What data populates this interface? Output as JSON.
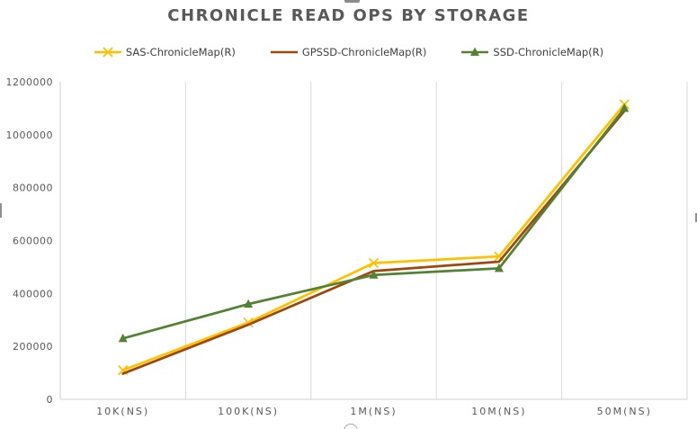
{
  "chart_data": {
    "type": "line",
    "title": "CHRONICLE READ OPS BY STORAGE",
    "categories": [
      "10K(NS)",
      "100K(NS)",
      "1M(NS)",
      "10M(NS)",
      "50M(NS)"
    ],
    "series": [
      {
        "name": "SAS-ChronicleMap(R)",
        "color": "#FFC000",
        "marker": "x",
        "values": [
          110000,
          290000,
          515000,
          540000,
          1115000
        ]
      },
      {
        "name": "GPSSD-ChronicleMap(R)",
        "color": "#9E480E",
        "marker": "none",
        "values": [
          97000,
          282000,
          485000,
          520000,
          1090000
        ]
      },
      {
        "name": "SSD-ChronicleMap(R)",
        "color": "#548235",
        "marker": "triangle",
        "values": [
          230000,
          360000,
          470000,
          495000,
          1100000
        ]
      }
    ],
    "ylim": [
      0,
      1200000
    ],
    "ytick_step": 200000,
    "ytick_labels": [
      "0",
      "200000",
      "400000",
      "600000",
      "800000",
      "1000000",
      "1200000"
    ],
    "xlabel": "",
    "ylabel": "",
    "legend_position": "top",
    "grid": "vertical-only"
  },
  "colors": {
    "title_text": "#595959",
    "axis_text": "#595959",
    "legend_text": "#404040",
    "gridline": "#D9D9D9",
    "axis_line": "#D0D0D0"
  }
}
